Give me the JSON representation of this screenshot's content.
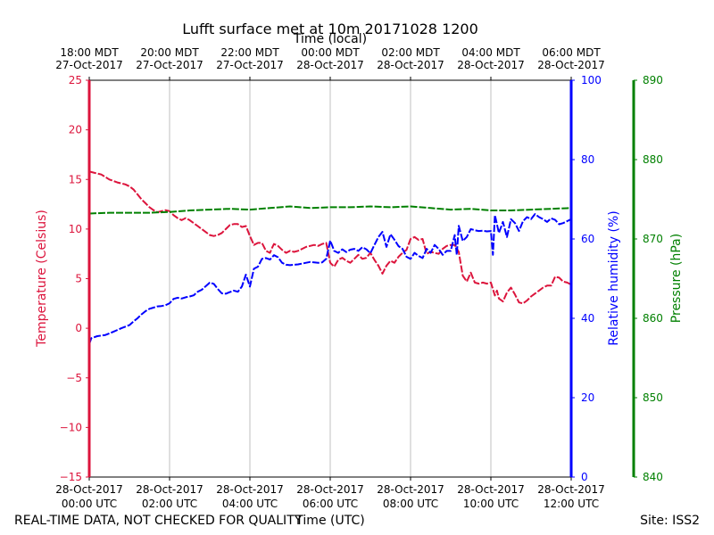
{
  "chart_data": {
    "type": "line",
    "title": "Lufft surface met at 10m 20171028 1200",
    "top_axis_label": "Time (local)",
    "xlabel": "Time (UTC)",
    "footer_left": "REAL-TIME DATA, NOT CHECKED FOR QUALITY",
    "footer_right": "Site: ISS2",
    "x_range_hours": [
      0,
      12
    ],
    "utc_ticks": [
      {
        "hour": 0,
        "line1": "28-Oct-2017",
        "line2": "00:00 UTC"
      },
      {
        "hour": 2,
        "line1": "28-Oct-2017",
        "line2": "02:00 UTC"
      },
      {
        "hour": 4,
        "line1": "28-Oct-2017",
        "line2": "04:00 UTC"
      },
      {
        "hour": 6,
        "line1": "28-Oct-2017",
        "line2": "06:00 UTC"
      },
      {
        "hour": 8,
        "line1": "28-Oct-2017",
        "line2": "08:00 UTC"
      },
      {
        "hour": 10,
        "line1": "28-Oct-2017",
        "line2": "10:00 UTC"
      },
      {
        "hour": 12,
        "line1": "28-Oct-2017",
        "line2": "12:00 UTC"
      }
    ],
    "local_ticks": [
      {
        "hour": 0,
        "line1": "18:00 MDT",
        "line2": "27-Oct-2017"
      },
      {
        "hour": 2,
        "line1": "20:00 MDT",
        "line2": "27-Oct-2017"
      },
      {
        "hour": 4,
        "line1": "22:00 MDT",
        "line2": "27-Oct-2017"
      },
      {
        "hour": 6,
        "line1": "00:00 MDT",
        "line2": "28-Oct-2017"
      },
      {
        "hour": 8,
        "line1": "02:00 MDT",
        "line2": "28-Oct-2017"
      },
      {
        "hour": 10,
        "line1": "04:00 MDT",
        "line2": "28-Oct-2017"
      },
      {
        "hour": 12,
        "line1": "06:00 MDT",
        "line2": "28-Oct-2017"
      }
    ],
    "grid": "vertical",
    "axes": {
      "temperature": {
        "label": "Temperature (Celsius)",
        "range": [
          -15,
          25
        ],
        "ticks": [
          -15,
          -10,
          -5,
          0,
          5,
          10,
          15,
          20,
          25
        ],
        "tick_labels": [
          "−15",
          "−10",
          "−5",
          "0",
          "5",
          "10",
          "15",
          "20",
          "25"
        ],
        "color": "#dc143c",
        "side": "left"
      },
      "humidity": {
        "label": "Relative humidity (%)",
        "range": [
          0,
          100
        ],
        "ticks": [
          0,
          20,
          40,
          60,
          80,
          100
        ],
        "color": "#0000ff",
        "side": "right"
      },
      "pressure": {
        "label": "Pressure (hPa)",
        "range": [
          840,
          890
        ],
        "ticks": [
          840,
          850,
          860,
          870,
          880,
          890
        ],
        "color": "#008000",
        "side": "right-outer"
      }
    },
    "series": [
      {
        "key": "temperature",
        "axis": "temperature",
        "color": "#dc143c",
        "points": [
          [
            0.0,
            15.8
          ],
          [
            0.1,
            15.7
          ],
          [
            0.3,
            15.5
          ],
          [
            0.5,
            15.0
          ],
          [
            0.7,
            14.7
          ],
          [
            0.9,
            14.5
          ],
          [
            1.0,
            14.3
          ],
          [
            1.1,
            14.0
          ],
          [
            1.2,
            13.5
          ],
          [
            1.3,
            13.0
          ],
          [
            1.4,
            12.6
          ],
          [
            1.5,
            12.2
          ],
          [
            1.6,
            11.9
          ],
          [
            1.7,
            11.7
          ],
          [
            1.8,
            11.8
          ],
          [
            1.9,
            11.9
          ],
          [
            2.0,
            11.8
          ],
          [
            2.1,
            11.4
          ],
          [
            2.2,
            11.1
          ],
          [
            2.3,
            10.9
          ],
          [
            2.4,
            11.1
          ],
          [
            2.5,
            10.9
          ],
          [
            2.6,
            10.6
          ],
          [
            2.7,
            10.3
          ],
          [
            2.8,
            10.0
          ],
          [
            2.9,
            9.7
          ],
          [
            3.0,
            9.4
          ],
          [
            3.1,
            9.3
          ],
          [
            3.2,
            9.4
          ],
          [
            3.3,
            9.6
          ],
          [
            3.4,
            10.0
          ],
          [
            3.5,
            10.4
          ],
          [
            3.6,
            10.5
          ],
          [
            3.7,
            10.5
          ],
          [
            3.8,
            10.2
          ],
          [
            3.9,
            10.3
          ],
          [
            4.0,
            9.3
          ],
          [
            4.1,
            8.4
          ],
          [
            4.2,
            8.6
          ],
          [
            4.3,
            8.6
          ],
          [
            4.4,
            7.8
          ],
          [
            4.5,
            7.6
          ],
          [
            4.55,
            8.1
          ],
          [
            4.6,
            8.5
          ],
          [
            4.7,
            8.3
          ],
          [
            4.8,
            7.9
          ],
          [
            4.9,
            7.6
          ],
          [
            5.0,
            7.8
          ],
          [
            5.1,
            7.7
          ],
          [
            5.2,
            7.8
          ],
          [
            5.3,
            8.0
          ],
          [
            5.4,
            8.2
          ],
          [
            5.5,
            8.3
          ],
          [
            5.6,
            8.4
          ],
          [
            5.7,
            8.3
          ],
          [
            5.8,
            8.5
          ],
          [
            5.9,
            8.6
          ],
          [
            6.0,
            6.6
          ],
          [
            6.1,
            6.2
          ],
          [
            6.2,
            6.9
          ],
          [
            6.3,
            7.1
          ],
          [
            6.4,
            6.8
          ],
          [
            6.5,
            6.6
          ],
          [
            6.6,
            7.0
          ],
          [
            6.7,
            7.4
          ],
          [
            6.8,
            7.0
          ],
          [
            6.9,
            7.1
          ],
          [
            7.0,
            7.6
          ],
          [
            7.1,
            6.9
          ],
          [
            7.2,
            6.3
          ],
          [
            7.3,
            5.5
          ],
          [
            7.4,
            6.3
          ],
          [
            7.5,
            6.8
          ],
          [
            7.6,
            6.6
          ],
          [
            7.7,
            7.2
          ],
          [
            7.8,
            7.6
          ],
          [
            7.9,
            7.9
          ],
          [
            8.0,
            9.0
          ],
          [
            8.1,
            9.2
          ],
          [
            8.2,
            8.9
          ],
          [
            8.3,
            9.0
          ],
          [
            8.4,
            7.5
          ],
          [
            8.5,
            7.7
          ],
          [
            8.6,
            7.6
          ],
          [
            8.7,
            7.5
          ],
          [
            8.8,
            8.0
          ],
          [
            8.9,
            8.3
          ],
          [
            9.0,
            8.4
          ],
          [
            9.1,
            8.4
          ],
          [
            9.2,
            7.7
          ],
          [
            9.3,
            5.3
          ],
          [
            9.4,
            4.7
          ],
          [
            9.5,
            5.6
          ],
          [
            9.6,
            4.6
          ],
          [
            9.7,
            4.5
          ],
          [
            9.8,
            4.6
          ],
          [
            9.9,
            4.5
          ],
          [
            10.0,
            4.6
          ],
          [
            10.1,
            3.3
          ],
          [
            10.15,
            3.8
          ],
          [
            10.2,
            3.0
          ],
          [
            10.3,
            2.7
          ],
          [
            10.4,
            3.6
          ],
          [
            10.5,
            4.1
          ],
          [
            10.6,
            3.4
          ],
          [
            10.7,
            2.6
          ],
          [
            10.8,
            2.5
          ],
          [
            10.9,
            2.8
          ],
          [
            11.0,
            3.2
          ],
          [
            11.1,
            3.5
          ],
          [
            11.2,
            3.8
          ],
          [
            11.3,
            4.1
          ],
          [
            11.4,
            4.3
          ],
          [
            11.5,
            4.3
          ],
          [
            11.6,
            5.2
          ],
          [
            11.7,
            5.1
          ],
          [
            11.8,
            4.7
          ],
          [
            11.9,
            4.6
          ],
          [
            12.0,
            4.4
          ]
        ]
      },
      {
        "key": "humidity",
        "axis": "humidity",
        "color": "#0000ff",
        "points": [
          [
            0.0,
            33.5
          ],
          [
            0.05,
            35.0
          ],
          [
            0.2,
            35.5
          ],
          [
            0.4,
            35.8
          ],
          [
            0.6,
            36.6
          ],
          [
            0.8,
            37.5
          ],
          [
            1.0,
            38.3
          ],
          [
            1.1,
            39.2
          ],
          [
            1.2,
            40.0
          ],
          [
            1.3,
            41.0
          ],
          [
            1.4,
            41.8
          ],
          [
            1.5,
            42.4
          ],
          [
            1.6,
            42.7
          ],
          [
            1.7,
            43.0
          ],
          [
            1.8,
            43.1
          ],
          [
            1.9,
            43.3
          ],
          [
            2.0,
            43.8
          ],
          [
            2.1,
            44.9
          ],
          [
            2.2,
            45.2
          ],
          [
            2.3,
            45.0
          ],
          [
            2.4,
            45.3
          ],
          [
            2.5,
            45.5
          ],
          [
            2.6,
            45.8
          ],
          [
            2.7,
            46.7
          ],
          [
            2.8,
            47.2
          ],
          [
            2.9,
            48.1
          ],
          [
            3.0,
            49.0
          ],
          [
            3.1,
            48.7
          ],
          [
            3.2,
            47.4
          ],
          [
            3.3,
            46.3
          ],
          [
            3.4,
            46.2
          ],
          [
            3.5,
            46.6
          ],
          [
            3.6,
            47.0
          ],
          [
            3.7,
            46.7
          ],
          [
            3.8,
            48.0
          ],
          [
            3.9,
            51.0
          ],
          [
            4.0,
            48.0
          ],
          [
            4.1,
            52.5
          ],
          [
            4.2,
            53.0
          ],
          [
            4.3,
            55.0
          ],
          [
            4.4,
            55.2
          ],
          [
            4.5,
            54.8
          ],
          [
            4.6,
            55.9
          ],
          [
            4.7,
            55.4
          ],
          [
            4.8,
            54.0
          ],
          [
            4.9,
            53.5
          ],
          [
            5.0,
            53.4
          ],
          [
            5.1,
            53.5
          ],
          [
            5.2,
            53.6
          ],
          [
            5.3,
            53.8
          ],
          [
            5.4,
            54.0
          ],
          [
            5.5,
            54.2
          ],
          [
            5.6,
            54.1
          ],
          [
            5.7,
            54.0
          ],
          [
            5.8,
            54.1
          ],
          [
            5.9,
            55.0
          ],
          [
            6.0,
            59.6
          ],
          [
            6.1,
            57.0
          ],
          [
            6.2,
            56.5
          ],
          [
            6.3,
            57.4
          ],
          [
            6.4,
            56.7
          ],
          [
            6.5,
            57.3
          ],
          [
            6.6,
            57.5
          ],
          [
            6.7,
            57.0
          ],
          [
            6.8,
            57.9
          ],
          [
            6.9,
            57.4
          ],
          [
            7.0,
            56.4
          ],
          [
            7.1,
            58.5
          ],
          [
            7.2,
            60.5
          ],
          [
            7.3,
            61.8
          ],
          [
            7.4,
            58.0
          ],
          [
            7.5,
            61.2
          ],
          [
            7.6,
            59.8
          ],
          [
            7.7,
            58.2
          ],
          [
            7.8,
            57.5
          ],
          [
            7.9,
            55.5
          ],
          [
            8.0,
            55.0
          ],
          [
            8.1,
            56.5
          ],
          [
            8.2,
            55.7
          ],
          [
            8.3,
            55.2
          ],
          [
            8.4,
            57.5
          ],
          [
            8.5,
            56.5
          ],
          [
            8.6,
            58.5
          ],
          [
            8.7,
            57.5
          ],
          [
            8.8,
            56.0
          ],
          [
            8.9,
            57.0
          ],
          [
            9.0,
            57.0
          ],
          [
            9.1,
            61.0
          ],
          [
            9.15,
            56.0
          ],
          [
            9.2,
            63.3
          ],
          [
            9.3,
            59.5
          ],
          [
            9.4,
            60.5
          ],
          [
            9.5,
            62.5
          ],
          [
            9.6,
            62.2
          ],
          [
            9.7,
            62.0
          ],
          [
            9.8,
            62.1
          ],
          [
            9.9,
            61.9
          ],
          [
            10.0,
            62.0
          ],
          [
            10.05,
            56.0
          ],
          [
            10.1,
            66.0
          ],
          [
            10.2,
            61.5
          ],
          [
            10.3,
            64.3
          ],
          [
            10.4,
            60.5
          ],
          [
            10.5,
            65.0
          ],
          [
            10.6,
            64.0
          ],
          [
            10.7,
            62.0
          ],
          [
            10.8,
            64.5
          ],
          [
            10.9,
            65.5
          ],
          [
            11.0,
            65.0
          ],
          [
            11.1,
            66.3
          ],
          [
            11.2,
            65.5
          ],
          [
            11.3,
            65.0
          ],
          [
            11.4,
            64.3
          ],
          [
            11.5,
            65.2
          ],
          [
            11.6,
            64.8
          ],
          [
            11.7,
            63.7
          ],
          [
            11.8,
            64.0
          ],
          [
            11.9,
            64.5
          ],
          [
            12.0,
            65.0
          ]
        ]
      },
      {
        "key": "pressure",
        "axis": "pressure",
        "color": "#008000",
        "points": [
          [
            0.0,
            873.2
          ],
          [
            0.5,
            873.3
          ],
          [
            1.0,
            873.3
          ],
          [
            1.5,
            873.3
          ],
          [
            2.0,
            873.4
          ],
          [
            2.5,
            873.6
          ],
          [
            3.0,
            873.7
          ],
          [
            3.5,
            873.8
          ],
          [
            4.0,
            873.7
          ],
          [
            4.5,
            873.9
          ],
          [
            5.0,
            874.1
          ],
          [
            5.5,
            873.9
          ],
          [
            6.0,
            874.0
          ],
          [
            6.5,
            874.0
          ],
          [
            7.0,
            874.1
          ],
          [
            7.5,
            874.0
          ],
          [
            8.0,
            874.1
          ],
          [
            8.5,
            873.9
          ],
          [
            9.0,
            873.7
          ],
          [
            9.5,
            873.8
          ],
          [
            10.0,
            873.6
          ],
          [
            10.5,
            873.6
          ],
          [
            11.0,
            873.7
          ],
          [
            11.5,
            873.8
          ],
          [
            12.0,
            873.9
          ]
        ]
      }
    ]
  }
}
